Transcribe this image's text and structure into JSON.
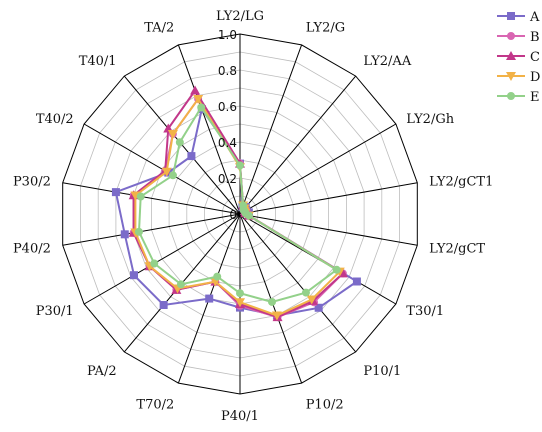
{
  "chart_data": {
    "type": "radar",
    "axes": [
      "LY2/LG",
      "LY2/G",
      "LY2/AA",
      "LY2/Gh",
      "LY2/gCT1",
      "LY2/gCT",
      "T30/1",
      "P10/1",
      "P10/2",
      "P40/1",
      "T70/2",
      "PA/2",
      "P30/1",
      "P40/2",
      "P30/2",
      "T40/2",
      "T40/1",
      "TA/2"
    ],
    "radial_ticks": [
      "0",
      "0.2",
      "0.4",
      "0.6",
      "0.8",
      "1.0"
    ],
    "rmax": 1.0,
    "legend_position": "right",
    "series": [
      {
        "name": "A",
        "color": "#7b6bc9",
        "marker": "square",
        "values": [
          0.28,
          0.04,
          0.05,
          0.04,
          0.05,
          0.05,
          0.75,
          0.68,
          0.6,
          0.52,
          0.5,
          0.66,
          0.68,
          0.65,
          0.7,
          0.46,
          0.42,
          0.62
        ]
      },
      {
        "name": "B",
        "color": "#d966b2",
        "marker": "circle",
        "values": [
          0.28,
          0.05,
          0.04,
          0.04,
          0.04,
          0.05,
          0.66,
          0.64,
          0.61,
          0.51,
          0.4,
          0.55,
          0.58,
          0.6,
          0.6,
          0.48,
          0.58,
          0.68
        ]
      },
      {
        "name": "C",
        "color": "#c2378a",
        "marker": "triangle",
        "values": [
          0.28,
          0.05,
          0.04,
          0.03,
          0.03,
          0.05,
          0.66,
          0.63,
          0.61,
          0.5,
          0.4,
          0.55,
          0.58,
          0.6,
          0.6,
          0.48,
          0.62,
          0.73
        ]
      },
      {
        "name": "D",
        "color": "#f2b247",
        "marker": "down-triangle",
        "values": [
          0.26,
          0.05,
          0.04,
          0.03,
          0.03,
          0.05,
          0.64,
          0.62,
          0.6,
          0.49,
          0.4,
          0.54,
          0.58,
          0.59,
          0.59,
          0.47,
          0.58,
          0.68
        ]
      },
      {
        "name": "E",
        "color": "#93d18a",
        "marker": "circle",
        "values": [
          0.27,
          0.05,
          0.03,
          0.03,
          0.03,
          0.05,
          0.62,
          0.57,
          0.52,
          0.44,
          0.37,
          0.51,
          0.55,
          0.57,
          0.56,
          0.43,
          0.52,
          0.63
        ]
      }
    ]
  }
}
